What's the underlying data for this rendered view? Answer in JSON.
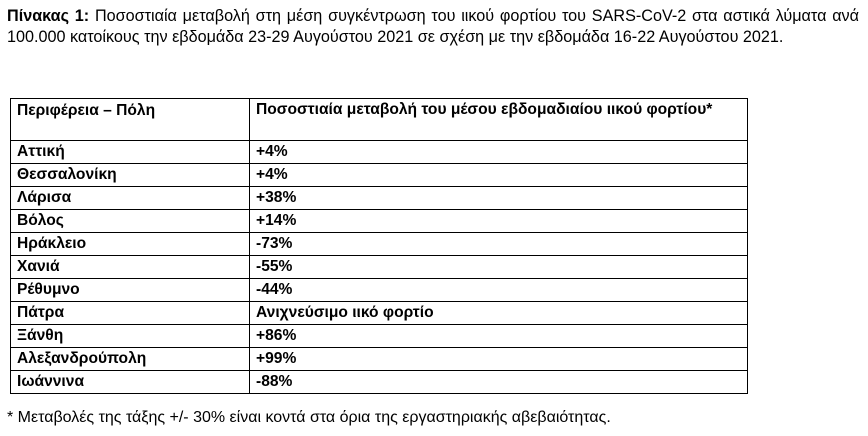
{
  "caption": {
    "label": "Πίνακας 1:",
    "text": " Ποσοστιαία μεταβολή στη μέση συγκέντρωση του ιικού φορτίου του SARS-CoV-2 στα αστικά λύματα ανά 100.000 κατοίκους την εβδομάδα 23-29 Αυγούστου 2021 σε σχέση με την εβδομάδα 16-22 Αυγούστου 2021."
  },
  "table": {
    "headers": {
      "city": "Περιφέρεια – Πόλη",
      "change": "Ποσοστιαία μεταβολή του μέσου εβδομαδιαίου ιικού φορτίου*"
    },
    "rows": [
      {
        "city": "Αττική",
        "change": "+4%"
      },
      {
        "city": "Θεσσαλονίκη",
        "change": "+4%"
      },
      {
        "city": "Λάρισα",
        "change": "+38%"
      },
      {
        "city": "Βόλος",
        "change": "+14%"
      },
      {
        "city": "Ηράκλειο",
        "change": "-73%"
      },
      {
        "city": "Χανιά",
        "change": "-55%"
      },
      {
        "city": "Ρέθυμνο",
        "change": "-44%"
      },
      {
        "city": "Πάτρα",
        "change": "Ανιχνεύσιμο ιικό φορτίο"
      },
      {
        "city": "Ξάνθη",
        "change": "+86%"
      },
      {
        "city": "Αλεξανδρούπολη",
        "change": "+99%"
      },
      {
        "city": "Ιωάννινα",
        "change": "-88%"
      }
    ]
  },
  "footnote": "* Μεταβολές της τάξης +/- 30% είναι κοντά στα όρια της εργαστηριακής αβεβαιότητας."
}
